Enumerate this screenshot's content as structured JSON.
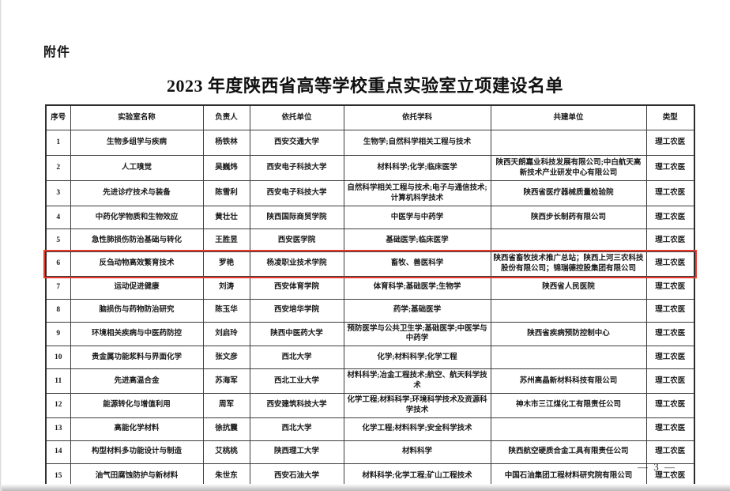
{
  "page": {
    "attachment_label": "附件",
    "title": "2023 年度陕西省高等学校重点实验室立项建设名单",
    "page_number": "— 3 —"
  },
  "table": {
    "columns": [
      "序号",
      "实验室名称",
      "负责人",
      "依托单位",
      "依托学科",
      "共建单位",
      "类型"
    ],
    "highlight_color": "#e8392f",
    "highlighted_row_no": "6",
    "rows": [
      {
        "no": "1",
        "lab": "生物多组学与疾病",
        "leader": "杨铁林",
        "institution": "西安交通大学",
        "disciplines": "生物学;自然科学相关工程与技术",
        "partners": "",
        "type": "理工农医"
      },
      {
        "no": "2",
        "lab": "人工嗅觉",
        "leader": "吴巍炜",
        "institution": "西安电子科技大学",
        "disciplines": "材料科学;化学;临床医学",
        "partners": "陕西天朗嘉业科技发展有限公司;中白航天高新技术产业研发中心有限公司",
        "type": "理工农医"
      },
      {
        "no": "3",
        "lab": "先进诊疗技术与装备",
        "leader": "陈雪利",
        "institution": "西安电子科技大学",
        "disciplines": "自然科学相关工程与技术;电子与通信技术;计算机科学技术",
        "partners": "陕西省医疗器械质量检验院",
        "type": "理工农医"
      },
      {
        "no": "4",
        "lab": "中药化学物质和生物效应",
        "leader": "黄壮壮",
        "institution": "陕西国际商贸学院",
        "disciplines": "中医学与中药学",
        "partners": "陕西步长制药有限公司",
        "type": "理工农医"
      },
      {
        "no": "5",
        "lab": "急性肺损伤防治基础与转化",
        "leader": "王胜昱",
        "institution": "西安医学院",
        "disciplines": "基础医学;临床医学",
        "partners": "",
        "type": "理工农医"
      },
      {
        "no": "6",
        "lab": "反刍动物高效繁育技术",
        "leader": "罗艳",
        "institution": "杨凌职业技术学院",
        "disciplines": "畜牧、兽医科学",
        "partners": "陕西省畜牧技术推广总站；陕西上河三农科技股份有限公司；锦瑞德控股集团有限公司",
        "type": "理工农医"
      },
      {
        "no": "7",
        "lab": "运动促进健康",
        "leader": "刘涛",
        "institution": "西安体育学院",
        "disciplines": "体育科学;基础医学;生物学",
        "partners": "陕西省人民医院",
        "type": "理工农医"
      },
      {
        "no": "8",
        "lab": "脑损伤与药物防治研究",
        "leader": "陈玉华",
        "institution": "西安培华学院",
        "disciplines": "药学;基础医学",
        "partners": "",
        "type": "理工农医"
      },
      {
        "no": "9",
        "lab": "环境相关疾病与中医药防控",
        "leader": "刘启玲",
        "institution": "陕西中医药大学",
        "disciplines": "预防医学与公共卫生学;基础医学;中医学与中药学",
        "partners": "陕西省疾病预防控制中心",
        "type": "理工农医"
      },
      {
        "no": "10",
        "lab": "贵金属功能浆料与界面化学",
        "leader": "张文彦",
        "institution": "西北大学",
        "disciplines": "化学;材料科学;化学工程",
        "partners": "",
        "type": "理工农医"
      },
      {
        "no": "11",
        "lab": "先进高温合金",
        "leader": "苏海军",
        "institution": "西北工业大学",
        "disciplines": "材料科学;冶金工程技术;航空、航天科学技术",
        "partners": "苏州高晶新材料科技有限公司",
        "type": "理工农医"
      },
      {
        "no": "12",
        "lab": "能源转化与增值利用",
        "leader": "周军",
        "institution": "西安建筑科技大学",
        "disciplines": "化学工程;材料科学;环境科学技术及资源科学技术",
        "partners": "神木市三江煤化工有限责任公司",
        "type": "理工农医"
      },
      {
        "no": "13",
        "lab": "高能化学材料",
        "leader": "徐抗震",
        "institution": "西北大学",
        "disciplines": "化学工程;材料科学;安全科学技术",
        "partners": "",
        "type": "理工农医"
      },
      {
        "no": "14",
        "lab": "构型材料多功能设计与制造",
        "leader": "艾桃桃",
        "institution": "陕西理工大学",
        "disciplines": "材料科学",
        "partners": "陕西航空硬质合金工具有限责任公司",
        "type": "理工农医"
      },
      {
        "no": "15",
        "lab": "油气田腐蚀防护与新材料",
        "leader": "朱世东",
        "institution": "西安石油大学",
        "disciplines": "材料科学;化学工程;矿山工程技术",
        "partners": "中国石油集团工程材料研究院有限公司",
        "type": "理工农医"
      }
    ]
  }
}
